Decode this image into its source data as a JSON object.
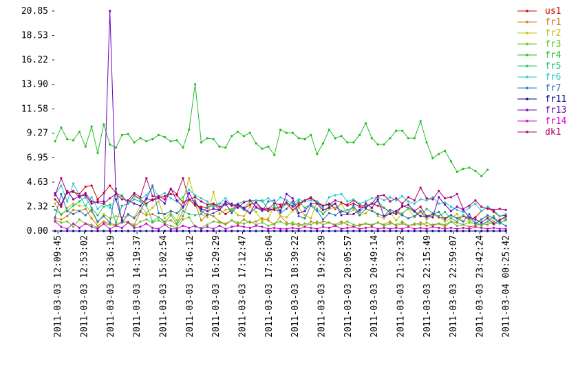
{
  "chart_data": {
    "type": "line",
    "x": [
      "2011-03-03 12:05:00",
      "2011-03-03 12:15:00",
      "2011-03-03 12:25:00",
      "2011-03-03 12:35:00",
      "2011-03-03 12:45:00",
      "2011-03-03 12:55:00",
      "2011-03-03 13:05:00",
      "2011-03-03 13:15:00",
      "2011-03-03 13:25:00",
      "2011-03-03 13:35:00",
      "2011-03-03 13:45:00",
      "2011-03-03 13:55:00",
      "2011-03-03 14:05:00",
      "2011-03-03 14:15:00",
      "2011-03-03 14:25:00",
      "2011-03-03 14:35:00",
      "2011-03-03 14:45:00",
      "2011-03-03 14:55:00",
      "2011-03-03 15:05:00",
      "2011-03-03 15:15:00",
      "2011-03-03 15:25:00",
      "2011-03-03 15:35:00",
      "2011-03-03 15:45:00",
      "2011-03-03 15:55:00",
      "2011-03-03 16:05:00",
      "2011-03-03 16:15:00",
      "2011-03-03 16:25:00",
      "2011-03-03 16:35:00",
      "2011-03-03 16:45:00",
      "2011-03-03 16:55:00",
      "2011-03-03 17:05:00",
      "2011-03-03 17:15:00",
      "2011-03-03 17:25:00",
      "2011-03-03 17:35:00",
      "2011-03-03 17:45:00",
      "2011-03-03 17:55:00",
      "2011-03-03 18:05:00",
      "2011-03-03 18:15:00",
      "2011-03-03 18:25:00",
      "2011-03-03 18:35:00",
      "2011-03-03 18:45:00",
      "2011-03-03 18:55:00",
      "2011-03-03 19:05:00",
      "2011-03-03 19:15:00",
      "2011-03-03 19:25:00",
      "2011-03-03 19:35:00",
      "2011-03-03 19:45:00",
      "2011-03-03 19:55:00",
      "2011-03-03 20:05:00",
      "2011-03-03 20:15:00",
      "2011-03-03 20:25:00",
      "2011-03-03 20:35:00",
      "2011-03-03 20:45:00",
      "2011-03-03 20:55:00",
      "2011-03-03 21:05:00",
      "2011-03-03 21:15:00",
      "2011-03-03 21:25:00",
      "2011-03-03 21:35:00",
      "2011-03-03 21:45:00",
      "2011-03-03 21:55:00",
      "2011-03-03 22:05:00",
      "2011-03-03 22:15:00",
      "2011-03-03 22:25:00",
      "2011-03-03 22:35:00",
      "2011-03-03 22:45:00",
      "2011-03-03 22:55:00",
      "2011-03-03 23:05:00",
      "2011-03-03 23:15:00",
      "2011-03-03 23:25:00",
      "2011-03-03 23:35:00",
      "2011-03-03 23:45:00",
      "2011-03-03 23:55:00",
      "2011-03-04 00:05:00",
      "2011-03-04 00:15:00",
      "2011-03-04 00:25:00"
    ],
    "xlim": [
      "2011-03-03 12:05:00",
      "2011-03-04 00:26:00"
    ],
    "xticks": [
      "2011-03-03 12:09:45",
      "2011-03-03 12:53:02",
      "2011-03-03 13:36:19",
      "2011-03-03 14:19:37",
      "2011-03-03 15:02:54",
      "2011-03-03 15:46:12",
      "2011-03-03 16:29:29",
      "2011-03-03 17:12:47",
      "2011-03-03 17:56:04",
      "2011-03-03 18:39:22",
      "2011-03-03 19:22:39",
      "2011-03-03 20:05:57",
      "2011-03-03 20:49:14",
      "2011-03-03 21:32:32",
      "2011-03-03 22:15:49",
      "2011-03-03 22:59:07",
      "2011-03-03 23:42:24",
      "2011-03-04 00:25:42"
    ],
    "ylim": [
      0,
      20.85
    ],
    "yticks": [
      {
        "value": 0,
        "label": "0.00"
      },
      2.32,
      4.63,
      6.95,
      9.27,
      11.58,
      {
        "value": 13.9,
        "label": "13.90"
      },
      16.22,
      18.53,
      20.85
    ],
    "series": [
      {
        "name": "us1",
        "color": "#cc0000",
        "values": [
          3.0,
          2.3,
          3.7,
          3.7,
          3.5,
          4.2,
          4.3,
          3.0,
          3.6,
          4.3,
          3.6,
          3.3,
          2.6,
          3.4,
          3.0,
          2.6,
          3.0,
          3.2,
          3.3,
          3.5,
          3.4,
          2.7,
          3.0,
          2.4,
          2.3,
          2.2,
          2.6,
          2.0,
          1.6,
          2.0,
          2.6,
          2.1,
          2.5,
          2.7,
          2.0,
          1.9,
          2.1,
          2.3,
          2.6,
          2.0,
          2.4,
          2.9,
          3.1,
          2.8,
          2.4,
          2.6,
          2.1,
          2.6,
          2.5,
          2.9,
          2.5,
          2.3,
          2.6,
          2.4,
          2.2,
          1.8,
          1.6,
          2.4,
          2.2,
          1.9,
          2.3,
          1.4,
          1.6,
          1.3,
          1.2,
          1.5,
          1.2,
          1.4,
          1.1,
          1.3,
          1.9,
          2.3,
          1.8,
          1.4,
          1.5
        ]
      },
      {
        "name": "fr1",
        "color": "#c87a14",
        "values": [
          1.2,
          1.1,
          1.4,
          2.0,
          1.9,
          2.1,
          1.2,
          0.5,
          0.9,
          0.7,
          0.6,
          0.9,
          0.8,
          0.6,
          1.8,
          1.5,
          1.6,
          1.3,
          0.9,
          1.0,
          0.6,
          1.4,
          2.9,
          2.6,
          1.0,
          1.6,
          1.4,
          0.9,
          0.7,
          1.0,
          0.6,
          1.1,
          0.8,
          0.9,
          1.2,
          1.0,
          0.6,
          1.4,
          0.8,
          0.6,
          0.7,
          0.4,
          0.9,
          0.7,
          0.9,
          0.8,
          0.6,
          0.9,
          0.6,
          0.4,
          0.6,
          0.7,
          0.5,
          0.8,
          0.6,
          0.9,
          0.5,
          0.7,
          0.5,
          0.6,
          0.8,
          0.5,
          0.6,
          0.7,
          0.4,
          0.9,
          0.8,
          0.6,
          0.4,
          0.5,
          0.7,
          0.6,
          0.9,
          1.1,
          1.2
        ]
      },
      {
        "name": "fr2",
        "color": "#c0c000",
        "values": [
          2.6,
          1.5,
          2.2,
          2.6,
          2.4,
          2.4,
          1.8,
          0.8,
          1.6,
          1.2,
          1.4,
          1.3,
          1.5,
          1.3,
          2.4,
          1.7,
          2.2,
          2.8,
          1.2,
          1.7,
          1.0,
          2.9,
          5.0,
          2.9,
          1.6,
          1.3,
          3.7,
          1.6,
          2.0,
          2.1,
          1.5,
          1.4,
          2.3,
          1.8,
          1.0,
          1.2,
          2.4,
          1.4,
          1.3,
          1.9,
          2.2,
          1.5,
          1.2,
          2.8,
          1.6,
          2.1,
          2.2,
          2.6,
          1.6,
          2.0,
          1.5,
          1.7,
          2.2,
          1.4,
          1.2,
          1.8,
          1.0,
          1.7,
          2.1,
          1.3,
          1.8,
          1.1,
          1.5,
          1.4,
          0.9,
          1.2,
          1.6,
          0.9,
          1.0,
          0.6,
          1.1,
          1.4,
          0.9,
          1.1,
          1.3
        ]
      },
      {
        "name": "fr3",
        "color": "#5cc41a",
        "values": [
          1.0,
          0.8,
          0.9,
          0.4,
          1.1,
          0.7,
          0.6,
          0.3,
          0.7,
          0.6,
          0.5,
          0.8,
          0.9,
          0.4,
          0.9,
          1.1,
          0.8,
          1.0,
          0.7,
          0.5,
          0.3,
          1.1,
          1.3,
          0.4,
          0.3,
          0.6,
          0.9,
          0.8,
          0.6,
          1.0,
          0.8,
          0.7,
          0.9,
          0.6,
          0.8,
          0.5,
          0.7,
          0.9,
          0.6,
          0.8,
          0.5,
          0.7,
          0.6,
          0.9,
          0.6,
          0.8,
          0.5,
          0.7,
          0.9,
          0.6,
          0.5,
          0.7,
          0.6,
          0.8,
          0.5,
          0.7,
          0.6,
          0.9,
          0.5,
          0.7,
          0.6,
          0.8,
          0.5,
          0.7,
          0.6,
          0.9,
          0.5,
          0.6,
          0.8,
          0.7,
          0.5,
          0.9,
          0.6,
          0.8,
          1.0
        ]
      },
      {
        "name": "fr4",
        "color": "#1fbf1f",
        "values": [
          8.5,
          9.8,
          8.7,
          8.6,
          9.4,
          8.0,
          9.9,
          7.4,
          10.1,
          8.2,
          7.9,
          9.1,
          9.2,
          8.4,
          8.8,
          8.5,
          8.7,
          9.1,
          8.9,
          8.5,
          8.6,
          7.9,
          9.6,
          13.9,
          8.4,
          8.8,
          8.7,
          8.0,
          7.9,
          9.0,
          9.4,
          9.0,
          9.3,
          8.3,
          7.8,
          8.0,
          7.2,
          9.6,
          9.3,
          9.3,
          8.8,
          8.7,
          9.1,
          7.3,
          8.3,
          9.6,
          8.8,
          9.0,
          8.4,
          8.4,
          9.1,
          10.2,
          8.8,
          8.2,
          8.2,
          8.8,
          9.5,
          9.5,
          8.8,
          8.8,
          10.4,
          8.4,
          6.9,
          7.3,
          7.6,
          6.6,
          5.6,
          5.9,
          6.0,
          5.7,
          5.2,
          5.8,
          null,
          null,
          null
        ]
      },
      {
        "name": "fr5",
        "color": "#1fbf70",
        "values": [
          2.0,
          1.6,
          1.9,
          2.4,
          2.8,
          3.2,
          2.2,
          1.5,
          2.3,
          2.5,
          0.8,
          2.4,
          2.6,
          3.0,
          2.8,
          2.4,
          0.9,
          1.3,
          0.8,
          1.5,
          0.7,
          1.9,
          1.6,
          1.5,
          1.6,
          2.3,
          2.4,
          2.6,
          2.5,
          1.9,
          2.4,
          2.2,
          2.8,
          2.9,
          2.9,
          2.0,
          2.3,
          2.0,
          2.6,
          2.4,
          2.8,
          2.2,
          2.5,
          2.1,
          1.6,
          2.4,
          2.6,
          1.8,
          2.0,
          2.2,
          1.8,
          2.4,
          2.6,
          2.8,
          2.2,
          1.7,
          1.9,
          1.6,
          2.2,
          1.8,
          1.4,
          2.1,
          1.7,
          1.4,
          1.8,
          1.2,
          0.9,
          1.5,
          1.2,
          0.8,
          0.6,
          0.9,
          1.4,
          0.7,
          1.1
        ]
      },
      {
        "name": "fr6",
        "color": "#1fc8c8",
        "values": [
          3.4,
          4.3,
          2.8,
          4.5,
          3.4,
          2.4,
          3.2,
          2.1,
          2.6,
          2.2,
          3.0,
          3.4,
          2.6,
          3.3,
          3.0,
          3.4,
          4.1,
          3.3,
          3.6,
          3.1,
          2.8,
          3.2,
          3.9,
          3.4,
          3.1,
          2.8,
          2.2,
          2.6,
          3.1,
          2.4,
          2.6,
          2.8,
          2.9,
          2.9,
          2.8,
          3.1,
          2.6,
          3.2,
          2.9,
          2.6,
          3.0,
          2.8,
          2.9,
          2.8,
          2.2,
          3.2,
          3.4,
          3.5,
          2.8,
          3.0,
          2.6,
          2.8,
          3.1,
          3.2,
          2.9,
          3.2,
          2.9,
          3.3,
          2.8,
          2.6,
          3.0,
          2.9,
          3.2,
          2.6,
          2.7,
          2.3,
          2.0,
          1.8,
          2.2,
          2.6,
          1.9,
          2.3,
          2.0,
          1.4,
          1.6
        ]
      },
      {
        "name": "fr7",
        "color": "#2a70b8",
        "values": [
          1.3,
          3.5,
          1.9,
          1.6,
          1.9,
          1.5,
          2.0,
          0.9,
          1.4,
          0.8,
          4.0,
          0.8,
          1.6,
          1.2,
          1.9,
          3.0,
          4.3,
          1.7,
          1.6,
          1.9,
          1.7,
          2.2,
          3.0,
          2.8,
          1.9,
          1.5,
          1.7,
          2.0,
          2.6,
          1.7,
          2.4,
          2.0,
          1.7,
          2.2,
          1.9,
          2.8,
          2.9,
          1.7,
          2.1,
          2.8,
          1.4,
          1.2,
          2.4,
          1.9,
          1.1,
          1.7,
          1.5,
          1.9,
          1.7,
          2.4,
          1.5,
          2.1,
          1.9,
          1.6,
          1.4,
          2.0,
          1.8,
          1.5,
          1.2,
          1.4,
          1.9,
          1.3,
          1.6,
          1.8,
          1.1,
          1.5,
          1.2,
          0.9,
          1.6,
          0.7,
          1.1,
          1.5,
          1.2,
          0.8,
          0.5
        ]
      },
      {
        "name": "fr11",
        "color": "#00008b",
        "values": [
          0.0,
          0.0,
          0.0,
          0.0,
          0.0,
          0.0,
          0.0,
          0.0,
          0.0,
          0.0,
          0.0,
          0.0,
          0.0,
          0.0,
          0.0,
          0.0,
          0.0,
          0.0,
          0.0,
          0.0,
          0.0,
          0.0,
          0.0,
          0.0,
          0.0,
          0.0,
          0.0,
          0.0,
          0.0,
          0.0,
          0.0,
          0.0,
          0.0,
          0.0,
          0.0,
          0.0,
          0.0,
          0.0,
          0.0,
          0.0,
          0.0,
          0.0,
          0.0,
          0.0,
          0.0,
          0.0,
          0.0,
          0.0,
          0.0,
          0.0,
          0.0,
          0.0,
          0.0,
          0.0,
          0.0,
          0.0,
          0.0,
          0.0,
          0.0,
          0.0,
          0.0,
          0.0,
          0.0,
          0.0,
          0.0,
          0.0,
          0.0,
          0.0,
          0.0,
          0.0,
          0.0,
          0.0,
          0.0,
          0.0,
          0.0
        ]
      },
      {
        "name": "fr13",
        "color": "#7000c0",
        "values": [
          3.6,
          2.5,
          3.8,
          3.0,
          3.3,
          3.4,
          2.6,
          2.8,
          2.8,
          20.85,
          3.0,
          1.0,
          2.9,
          2.6,
          2.4,
          3.1,
          2.9,
          3.1,
          2.6,
          4.0,
          2.9,
          2.3,
          3.6,
          2.6,
          2.1,
          1.9,
          2.1,
          2.0,
          2.8,
          2.4,
          2.5,
          2.2,
          1.7,
          2.7,
          2.1,
          2.1,
          2.0,
          1.9,
          3.5,
          3.1,
          1.7,
          1.9,
          2.6,
          2.6,
          2.0,
          2.2,
          2.6,
          1.5,
          1.6,
          1.6,
          2.0,
          2.6,
          2.2,
          3.0,
          1.4,
          1.6,
          1.9,
          2.3,
          2.5,
          1.9,
          1.4,
          1.4,
          1.3,
          3.2,
          2.5,
          1.9,
          2.3,
          2.0,
          1.3,
          1.1,
          0.8,
          1.2,
          0.7,
          1.0,
          1.4
        ]
      },
      {
        "name": "fr14",
        "color": "#d000d0",
        "values": [
          0.9,
          0.4,
          0.2,
          0.7,
          0.3,
          0.7,
          0.4,
          0.2,
          0.7,
          0.2,
          0.5,
          0.3,
          0.8,
          0.3,
          0.4,
          0.7,
          0.3,
          0.2,
          0.6,
          0.2,
          0.2,
          0.5,
          0.3,
          0.5,
          0.2,
          0.4,
          0.2,
          0.5,
          0.2,
          0.4,
          0.5,
          0.4,
          0.3,
          0.5,
          0.4,
          0.2,
          0.3,
          0.2,
          0.2,
          0.3,
          0.2,
          0.4,
          0.3,
          0.2,
          0.4,
          0.3,
          0.5,
          0.2,
          0.3,
          0.4,
          0.2,
          0.3,
          0.4,
          0.2,
          0.3,
          0.2,
          0.3,
          0.2,
          0.4,
          0.2,
          0.3,
          0.2,
          0.4,
          0.3,
          0.2,
          0.3,
          0.2,
          0.3,
          0.2,
          0.4,
          0.3,
          0.2,
          0.3,
          0.2,
          0.2
        ]
      },
      {
        "name": "dk1",
        "color": "#b0006a",
        "values": [
          3.4,
          5.0,
          3.6,
          3.8,
          3.2,
          3.6,
          2.8,
          2.7,
          2.6,
          3.1,
          3.5,
          3.0,
          2.9,
          3.6,
          3.2,
          5.0,
          3.3,
          3.3,
          3.0,
          4.0,
          3.5,
          5.0,
          3.0,
          3.2,
          2.8,
          2.5,
          2.6,
          2.3,
          2.5,
          2.6,
          2.2,
          2.7,
          2.9,
          2.3,
          2.0,
          2.1,
          2.6,
          2.5,
          2.7,
          2.3,
          2.6,
          2.9,
          3.2,
          2.6,
          2.4,
          2.5,
          2.9,
          2.7,
          2.4,
          2.6,
          2.3,
          2.2,
          2.6,
          3.3,
          3.4,
          2.8,
          3.1,
          2.6,
          3.2,
          2.9,
          4.1,
          3.1,
          3.0,
          3.8,
          3.1,
          3.2,
          3.5,
          2.1,
          2.4,
          2.9,
          2.3,
          2.1,
          2.0,
          2.1,
          2.0
        ]
      }
    ]
  }
}
